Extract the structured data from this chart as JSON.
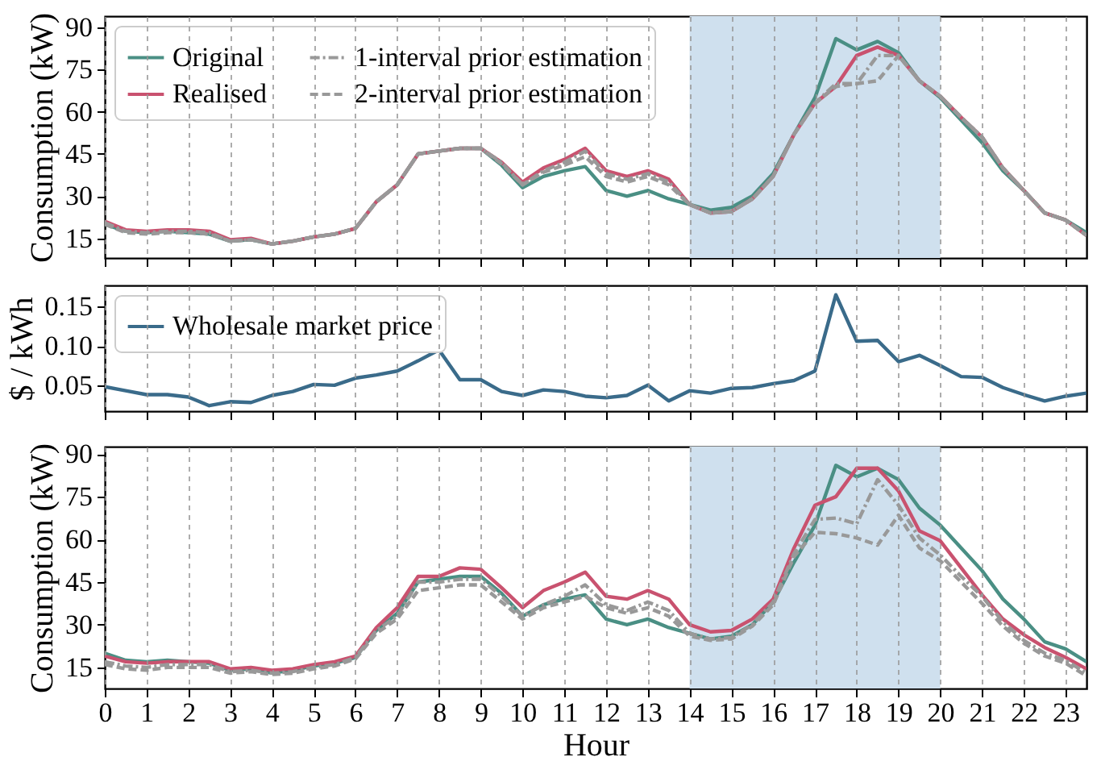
{
  "chart_data": [
    {
      "type": "line",
      "ylabel": "Consumption (kW)",
      "x": [
        0,
        0.5,
        1,
        1.5,
        2,
        2.5,
        3,
        3.5,
        4,
        4.5,
        5,
        5.5,
        6,
        6.5,
        7,
        7.5,
        8,
        8.5,
        9,
        9.5,
        10,
        10.5,
        11,
        11.5,
        12,
        12.5,
        13,
        13.5,
        14,
        14.5,
        15,
        15.5,
        16,
        16.5,
        17,
        17.5,
        18,
        18.5,
        19,
        19.5,
        20,
        20.5,
        21,
        21.5,
        22,
        22.5,
        23,
        23.5
      ],
      "series": [
        {
          "name": "Original",
          "color": "#4a8f84",
          "line_style": "solid",
          "values": [
            20,
            17.5,
            17,
            17.5,
            17,
            16.5,
            14,
            14.5,
            13,
            14,
            15.5,
            16.5,
            18.5,
            28,
            34,
            45,
            46,
            47,
            47,
            41,
            33,
            37,
            39,
            40.5,
            32,
            30,
            32,
            29,
            27,
            25,
            26,
            30,
            38,
            52,
            65,
            86,
            82,
            85,
            81,
            71,
            65,
            57,
            49,
            39,
            32,
            24,
            21.5,
            17
          ]
        },
        {
          "name": "Realised",
          "color": "#c9526f",
          "line_style": "solid",
          "values": [
            21,
            18,
            17.5,
            18,
            18,
            17.5,
            14.5,
            15,
            13,
            14,
            15.5,
            16.5,
            18.5,
            28,
            34,
            45,
            46,
            47,
            47,
            42,
            35,
            40,
            43,
            47,
            39,
            37,
            39,
            36,
            27,
            24,
            24.5,
            29,
            37,
            52,
            63,
            69,
            80,
            83,
            80,
            71,
            65.5,
            58,
            51,
            40,
            32,
            24,
            21.5,
            16
          ]
        },
        {
          "name": "1-interval prior estimation",
          "color": "#999999",
          "line_style": "dashdot",
          "values": [
            20.5,
            17.5,
            17,
            17.5,
            17.5,
            17,
            14,
            14.5,
            13,
            14,
            15.5,
            16.5,
            18.5,
            28,
            34,
            45,
            46,
            47,
            47,
            42,
            34,
            39,
            42,
            46,
            38,
            36,
            38,
            35,
            27,
            24,
            24.5,
            29,
            37,
            52,
            63,
            70,
            70,
            80,
            80,
            71,
            65.5,
            58,
            51,
            40,
            32,
            24,
            21.5,
            16
          ]
        },
        {
          "name": "2-interval prior estimation",
          "color": "#999999",
          "line_style": "dashed",
          "values": [
            20,
            17,
            16.5,
            17,
            17,
            16.5,
            14,
            14.5,
            13,
            14,
            15.5,
            16.5,
            18.5,
            28,
            34,
            45,
            46,
            47,
            47,
            41.5,
            34,
            38.5,
            41,
            44,
            37,
            35,
            37,
            34,
            27,
            24,
            24.5,
            29,
            37,
            52,
            63,
            69,
            70,
            71,
            80,
            71,
            65.5,
            58,
            51,
            40,
            32,
            24,
            21.5,
            16
          ]
        }
      ],
      "xlim": [
        0,
        23.5
      ],
      "xticks": [
        0,
        1,
        2,
        3,
        4,
        5,
        6,
        7,
        8,
        9,
        10,
        11,
        12,
        13,
        14,
        15,
        16,
        17,
        18,
        19,
        20,
        21,
        22,
        23
      ],
      "ylim": [
        8,
        94
      ],
      "yticks": [
        15,
        30,
        45,
        60,
        75,
        90
      ],
      "tick_labels": "y",
      "grid": "x",
      "legend": "top left",
      "bands": [
        {
          "axis": "x",
          "from": 14,
          "to": 20,
          "color": "#cfe0ee"
        }
      ]
    },
    {
      "type": "line",
      "ylabel": "$ / kWh",
      "x": [
        0,
        0.5,
        1,
        1.5,
        2,
        2.5,
        3,
        3.5,
        4,
        4.5,
        5,
        5.5,
        6,
        6.5,
        7,
        7.5,
        8,
        8.5,
        9,
        9.5,
        10,
        10.5,
        11,
        11.5,
        12,
        12.5,
        13,
        13.5,
        14,
        14.5,
        15,
        15.5,
        16,
        16.5,
        17,
        17.5,
        18,
        18.5,
        19,
        19.5,
        20,
        20.5,
        21,
        21.5,
        22,
        22.5,
        23,
        23.5
      ],
      "series": [
        {
          "name": "Wholesale market price",
          "color": "#3a6b8a",
          "line_style": "solid",
          "values": [
            0.048,
            0.043,
            0.038,
            0.038,
            0.035,
            0.024,
            0.029,
            0.028,
            0.037,
            0.042,
            0.051,
            0.05,
            0.059,
            0.063,
            0.068,
            0.081,
            0.095,
            0.057,
            0.057,
            0.042,
            0.037,
            0.044,
            0.042,
            0.036,
            0.034,
            0.037,
            0.05,
            0.03,
            0.043,
            0.04,
            0.046,
            0.047,
            0.052,
            0.056,
            0.068,
            0.165,
            0.106,
            0.107,
            0.08,
            0.088,
            0.075,
            0.061,
            0.06,
            0.047,
            0.038,
            0.03,
            0.036,
            0.04
          ]
        }
      ],
      "xlim": [
        0,
        23.5
      ],
      "xticks": [
        0,
        1,
        2,
        3,
        4,
        5,
        6,
        7,
        8,
        9,
        10,
        11,
        12,
        13,
        14,
        15,
        16,
        17,
        18,
        19,
        20,
        21,
        22,
        23
      ],
      "ylim": [
        0.017,
        0.177
      ],
      "yticks": [
        0.05,
        {
          "value": 0.1,
          "label": "0.10"
        },
        0.15
      ],
      "tick_labels": "y",
      "grid": "x",
      "legend": "top left"
    },
    {
      "type": "line",
      "ylabel": "Consumption (kW)",
      "xlabel": "Hour",
      "x": [
        0,
        0.5,
        1,
        1.5,
        2,
        2.5,
        3,
        3.5,
        4,
        4.5,
        5,
        5.5,
        6,
        6.5,
        7,
        7.5,
        8,
        8.5,
        9,
        9.5,
        10,
        10.5,
        11,
        11.5,
        12,
        12.5,
        13,
        13.5,
        14,
        14.5,
        15,
        15.5,
        16,
        16.5,
        17,
        17.5,
        18,
        18.5,
        19,
        19.5,
        20,
        20.5,
        21,
        21.5,
        22,
        22.5,
        23,
        23.5
      ],
      "series": [
        {
          "color": "#4a8f84",
          "line_style": "solid",
          "values": [
            20,
            17.5,
            17,
            17.5,
            17,
            16.5,
            14,
            14.5,
            13,
            14,
            15.5,
            16.5,
            18.5,
            28,
            34,
            45,
            46,
            47,
            47,
            41,
            33,
            37,
            39,
            40.5,
            32,
            30,
            32,
            29,
            27,
            25,
            26,
            30,
            38,
            52,
            65,
            86,
            82,
            85,
            81,
            71,
            65,
            57,
            49,
            39,
            32,
            24,
            21.5,
            17
          ]
        },
        {
          "color": "#c9526f",
          "line_style": "solid",
          "values": [
            19,
            17,
            16.5,
            17,
            17,
            17,
            14.5,
            15,
            14,
            14.5,
            16,
            17,
            19,
            29,
            36,
            47,
            47,
            50,
            49.5,
            43,
            36,
            42,
            45,
            48.5,
            40,
            39,
            42,
            39,
            30,
            27.5,
            28,
            32,
            39,
            57,
            72,
            75,
            85,
            85,
            77,
            63,
            59.5,
            50,
            40.5,
            32,
            26.5,
            22,
            18.5,
            14.5
          ]
        },
        {
          "color": "#999999",
          "line_style": "dashdot",
          "values": [
            17,
            15.5,
            15,
            16,
            16,
            16,
            13.5,
            14,
            13,
            13.5,
            15,
            16,
            18.5,
            28,
            33,
            45,
            45,
            46,
            46,
            40,
            33,
            37,
            40,
            44,
            37,
            35,
            38,
            35,
            27,
            25,
            25.5,
            30,
            38,
            55,
            67,
            67.5,
            65.5,
            81,
            72,
            60.5,
            54.5,
            47,
            40,
            31,
            24.5,
            20,
            17.5,
            13
          ]
        },
        {
          "color": "#999999",
          "line_style": "dashed",
          "values": [
            16,
            14.5,
            14,
            15,
            15,
            15,
            13,
            13.5,
            12.5,
            13,
            14.5,
            15.5,
            18,
            27,
            32,
            42,
            43,
            44,
            44,
            38,
            32,
            36,
            38,
            40,
            36,
            34,
            36,
            33,
            26,
            24.5,
            25,
            29.5,
            37,
            54,
            62.5,
            62,
            60.5,
            58,
            68.5,
            57,
            52.5,
            45,
            37.5,
            29.5,
            23.5,
            19,
            16.5,
            12
          ]
        }
      ],
      "xlim": [
        0,
        23.5
      ],
      "xticks": [
        0,
        1,
        2,
        3,
        4,
        5,
        6,
        7,
        8,
        9,
        10,
        11,
        12,
        13,
        14,
        15,
        16,
        17,
        18,
        19,
        20,
        21,
        22,
        23
      ],
      "ylim": [
        7.6,
        92.6
      ],
      "yticks": [
        15,
        30,
        45,
        60,
        75,
        90
      ],
      "grid": "x",
      "bands": [
        {
          "axis": "x",
          "from": 14,
          "to": 20,
          "color": "#cfe0ee"
        }
      ]
    }
  ]
}
